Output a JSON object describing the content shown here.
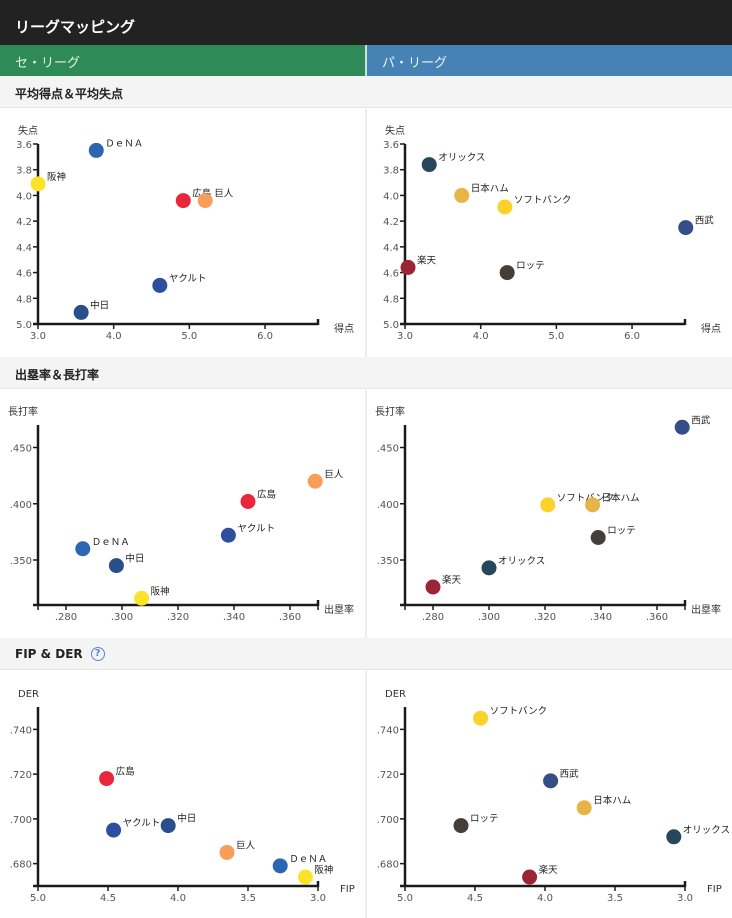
{
  "header": {
    "title": "リーグマッピング"
  },
  "leagues": {
    "central": "セ・リーグ",
    "pacific": "パ・リーグ"
  },
  "sections": [
    {
      "title": "平均得点＆平均失点",
      "help": false
    },
    {
      "title": "出塁率＆長打率",
      "help": false
    },
    {
      "title": "FIP & DER",
      "help": true,
      "help_icon": "?"
    }
  ],
  "team_colors": {
    "広島": "#e8273b",
    "巨人": "#f89e5a",
    "阪神": "#fce229",
    "DeNA": "#2c66b0",
    "ヤクルト": "#2e4fa0",
    "中日": "#284e8c",
    "西武": "#344e86",
    "オリックス": "#26485a",
    "日本ハム": "#e8b445",
    "ソフトバンク": "#fcd22a",
    "ロッテ": "#453d38",
    "楽天": "#9b2535"
  },
  "chart_data": [
    {
      "id": "runs-central",
      "type": "scatter",
      "league": "セ・リーグ",
      "xlabel": "得点",
      "ylabel": "失点",
      "xlim": [
        3.0,
        6.7
      ],
      "ylim": [
        3.6,
        5.0
      ],
      "y_inverted": true,
      "x_inverted": false,
      "xticks": [
        3.0,
        4.0,
        5.0,
        6.0
      ],
      "xtick_labels": [
        "3.0",
        "4.0",
        "5.0",
        "6.0"
      ],
      "yticks": [
        3.6,
        3.8,
        4.0,
        4.2,
        4.4,
        4.6,
        4.8,
        5.0
      ],
      "ytick_labels": [
        "3.6",
        "3.8",
        "4.0",
        "4.2",
        "4.4",
        "4.6",
        "4.8",
        "5.0"
      ],
      "points": [
        {
          "label": "ＤｅＮＡ",
          "team": "DeNA",
          "x": 3.77,
          "y": 3.65
        },
        {
          "label": "阪神",
          "team": "阪神",
          "x": 3.0,
          "y": 3.91
        },
        {
          "label": "広島",
          "team": "広島",
          "x": 4.92,
          "y": 4.04
        },
        {
          "label": "巨人",
          "team": "巨人",
          "x": 5.21,
          "y": 4.04
        },
        {
          "label": "ヤクルト",
          "team": "ヤクルト",
          "x": 4.61,
          "y": 4.7
        },
        {
          "label": "中日",
          "team": "中日",
          "x": 3.57,
          "y": 4.91
        }
      ]
    },
    {
      "id": "runs-pacific",
      "type": "scatter",
      "league": "パ・リーグ",
      "xlabel": "得点",
      "ylabel": "失点",
      "xlim": [
        3.0,
        6.7
      ],
      "ylim": [
        3.6,
        5.0
      ],
      "y_inverted": true,
      "x_inverted": false,
      "xticks": [
        3.0,
        4.0,
        5.0,
        6.0
      ],
      "xtick_labels": [
        "3.0",
        "4.0",
        "5.0",
        "6.0"
      ],
      "yticks": [
        3.6,
        3.8,
        4.0,
        4.2,
        4.4,
        4.6,
        4.8,
        5.0
      ],
      "ytick_labels": [
        "3.6",
        "3.8",
        "4.0",
        "4.2",
        "4.4",
        "4.6",
        "4.8",
        "5.0"
      ],
      "points": [
        {
          "label": "オリックス",
          "team": "オリックス",
          "x": 3.32,
          "y": 3.76
        },
        {
          "label": "日本ハム",
          "team": "日本ハム",
          "x": 3.75,
          "y": 4.0
        },
        {
          "label": "ソフトバンク",
          "team": "ソフトバンク",
          "x": 4.32,
          "y": 4.09
        },
        {
          "label": "西武",
          "team": "西武",
          "x": 6.71,
          "y": 4.25
        },
        {
          "label": "楽天",
          "team": "楽天",
          "x": 3.04,
          "y": 4.56
        },
        {
          "label": "ロッテ",
          "team": "ロッテ",
          "x": 4.35,
          "y": 4.6
        }
      ]
    },
    {
      "id": "obp-central",
      "type": "scatter",
      "league": "セ・リーグ",
      "xlabel": "出塁率",
      "ylabel": "長打率",
      "xlim": [
        0.27,
        0.37
      ],
      "ylim": [
        0.31,
        0.47
      ],
      "y_inverted": false,
      "x_inverted": false,
      "xticks": [
        0.27,
        0.28,
        0.3,
        0.32,
        0.34,
        0.36,
        0.37
      ],
      "xtick_labels": [
        "",
        ".280",
        ".300",
        ".320",
        ".340",
        ".360",
        ""
      ],
      "yticks": [
        0.35,
        0.4,
        0.45
      ],
      "ytick_labels": [
        ".350",
        ".400",
        ".450"
      ],
      "points": [
        {
          "label": "巨人",
          "team": "巨人",
          "x": 0.369,
          "y": 0.42
        },
        {
          "label": "広島",
          "team": "広島",
          "x": 0.345,
          "y": 0.402
        },
        {
          "label": "ヤクルト",
          "team": "ヤクルト",
          "x": 0.338,
          "y": 0.372
        },
        {
          "label": "ＤｅＮＡ",
          "team": "DeNA",
          "x": 0.286,
          "y": 0.36
        },
        {
          "label": "中日",
          "team": "中日",
          "x": 0.298,
          "y": 0.345
        },
        {
          "label": "阪神",
          "team": "阪神",
          "x": 0.307,
          "y": 0.316
        }
      ]
    },
    {
      "id": "obp-pacific",
      "type": "scatter",
      "league": "パ・リーグ",
      "xlabel": "出塁率",
      "ylabel": "長打率",
      "xlim": [
        0.27,
        0.37
      ],
      "ylim": [
        0.31,
        0.47
      ],
      "y_inverted": false,
      "x_inverted": false,
      "xticks": [
        0.27,
        0.28,
        0.3,
        0.32,
        0.34,
        0.36,
        0.37
      ],
      "xtick_labels": [
        "",
        ".280",
        ".300",
        ".320",
        ".340",
        ".360",
        ""
      ],
      "yticks": [
        0.35,
        0.4,
        0.45
      ],
      "ytick_labels": [
        ".350",
        ".400",
        ".450"
      ],
      "points": [
        {
          "label": "西武",
          "team": "西武",
          "x": 0.369,
          "y": 0.468
        },
        {
          "label": "ソフトバンク",
          "team": "ソフトバンク",
          "x": 0.321,
          "y": 0.399
        },
        {
          "label": "日本ハム",
          "team": "日本ハム",
          "x": 0.337,
          "y": 0.399
        },
        {
          "label": "ロッテ",
          "team": "ロッテ",
          "x": 0.339,
          "y": 0.37
        },
        {
          "label": "オリックス",
          "team": "オリックス",
          "x": 0.3,
          "y": 0.343
        },
        {
          "label": "楽天",
          "team": "楽天",
          "x": 0.28,
          "y": 0.326
        }
      ]
    },
    {
      "id": "fip-central",
      "type": "scatter",
      "league": "セ・リーグ",
      "xlabel": "FIP",
      "ylabel": "DER",
      "xlim": [
        5.0,
        3.0
      ],
      "ylim": [
        0.67,
        0.75
      ],
      "y_inverted": false,
      "x_inverted": true,
      "xticks": [
        5.0,
        4.5,
        4.0,
        3.5,
        3.0
      ],
      "xtick_labels": [
        "5.0",
        "4.5",
        "4.0",
        "3.5",
        "3.0"
      ],
      "yticks": [
        0.68,
        0.7,
        0.72,
        0.74
      ],
      "ytick_labels": [
        ".680",
        ".700",
        ".720",
        ".740"
      ],
      "points": [
        {
          "label": "広島",
          "team": "広島",
          "x": 4.51,
          "y": 0.718
        },
        {
          "label": "ヤクルト",
          "team": "ヤクルト",
          "x": 4.46,
          "y": 0.695
        },
        {
          "label": "中日",
          "team": "中日",
          "x": 4.07,
          "y": 0.697
        },
        {
          "label": "巨人",
          "team": "巨人",
          "x": 3.65,
          "y": 0.685
        },
        {
          "label": "ＤｅＮＡ",
          "team": "DeNA",
          "x": 3.27,
          "y": 0.679
        },
        {
          "label": "阪神",
          "team": "阪神",
          "x": 3.09,
          "y": 0.674
        }
      ]
    },
    {
      "id": "fip-pacific",
      "type": "scatter",
      "league": "パ・リーグ",
      "xlabel": "FIP",
      "ylabel": "DER",
      "xlim": [
        5.0,
        3.0
      ],
      "ylim": [
        0.67,
        0.75
      ],
      "y_inverted": false,
      "x_inverted": true,
      "xticks": [
        5.0,
        4.5,
        4.0,
        3.5,
        3.0
      ],
      "xtick_labels": [
        "5.0",
        "4.5",
        "4.0",
        "3.5",
        "3.0"
      ],
      "yticks": [
        0.68,
        0.7,
        0.72,
        0.74
      ],
      "ytick_labels": [
        ".680",
        ".700",
        ".720",
        ".740"
      ],
      "points": [
        {
          "label": "ソフトバンク",
          "team": "ソフトバンク",
          "x": 4.46,
          "y": 0.745
        },
        {
          "label": "西武",
          "team": "西武",
          "x": 3.96,
          "y": 0.717
        },
        {
          "label": "日本ハム",
          "team": "日本ハム",
          "x": 3.72,
          "y": 0.705
        },
        {
          "label": "ロッテ",
          "team": "ロッテ",
          "x": 4.6,
          "y": 0.697
        },
        {
          "label": "オリックス",
          "team": "オリックス",
          "x": 3.08,
          "y": 0.692
        },
        {
          "label": "楽天",
          "team": "楽天",
          "x": 4.11,
          "y": 0.674
        }
      ]
    }
  ]
}
